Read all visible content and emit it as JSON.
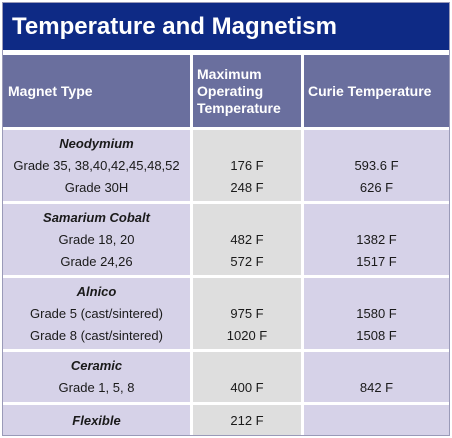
{
  "title": "Temperature and Magnetism",
  "headers": {
    "type_line1": "Magnet Type",
    "max_line1": "Maximum",
    "max_line2": "Operating",
    "max_line3": "Temperature",
    "curie": "Curie Temperature"
  },
  "groups": [
    {
      "name": "Neodymium",
      "rows": [
        {
          "grade": "Grade 35, 38,40,42,45,48,52",
          "max": "176 F",
          "curie": "593.6 F"
        },
        {
          "grade": "Grade 30H",
          "max": "248 F",
          "curie": "626 F"
        }
      ]
    },
    {
      "name": "Samarium Cobalt",
      "rows": [
        {
          "grade": "Grade 18, 20",
          "max": "482 F",
          "curie": "1382 F"
        },
        {
          "grade": "Grade 24,26",
          "max": "572 F",
          "curie": "1517 F"
        }
      ]
    },
    {
      "name": "Alnico",
      "rows": [
        {
          "grade": "Grade 5 (cast/sintered)",
          "max": "975 F",
          "curie": "1580 F"
        },
        {
          "grade": "Grade 8 (cast/sintered)",
          "max": "1020 F",
          "curie": "1508 F"
        }
      ]
    },
    {
      "name": "Ceramic",
      "rows": [
        {
          "grade": "Grade 1, 5, 8",
          "max": "400 F",
          "curie": "842 F"
        }
      ]
    },
    {
      "name": "Flexible",
      "max": "212 F"
    }
  ]
}
